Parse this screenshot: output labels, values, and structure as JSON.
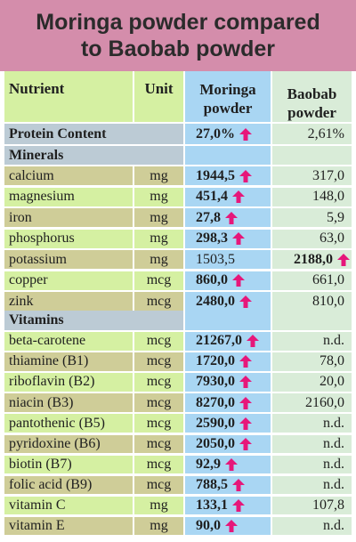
{
  "title": {
    "line1": "Moringa powder compared",
    "line2": "to Baobab powder"
  },
  "columns": {
    "nutrient": "Nutrient",
    "unit": "Unit",
    "moringa_1": "Moringa",
    "moringa_2": "powder",
    "baobab_1": "Baobab",
    "baobab_2": "powder"
  },
  "protein": {
    "label": "Protein Content",
    "moringa": "27,0%",
    "baobab": "2,61%"
  },
  "sections": {
    "minerals": "Minerals",
    "vitamins": "Vitamins"
  },
  "minerals": [
    {
      "name": "calcium",
      "unit": "mg",
      "moringa": "1944,5",
      "baobab": "317,0"
    },
    {
      "name": "magnesium",
      "unit": "mg",
      "moringa": "451,4",
      "baobab": "148,0"
    },
    {
      "name": "iron",
      "unit": "mg",
      "moringa": "27,8",
      "baobab": "5,9"
    },
    {
      "name": "phosphorus",
      "unit": "mg",
      "moringa": "298,3",
      "baobab": "63,0"
    },
    {
      "name": "potassium",
      "unit": "mg",
      "moringa": "1503,5",
      "baobab": "2188,0"
    },
    {
      "name": "copper",
      "unit": "mcg",
      "moringa": "860,0",
      "baobab": "661,0"
    },
    {
      "name": "zink",
      "unit": "mcg",
      "moringa": "2480,0",
      "baobab": "810,0"
    }
  ],
  "vitamins": [
    {
      "name": "beta-carotene",
      "unit": "mcg",
      "moringa": "21267,0",
      "baobab": "n.d."
    },
    {
      "name": "thiamine (B1)",
      "unit": "mcg",
      "moringa": "1720,0",
      "baobab": "78,0"
    },
    {
      "name": "riboflavin (B2)",
      "unit": "mcg",
      "moringa": "7930,0",
      "baobab": "20,0"
    },
    {
      "name": "niacin (B3)",
      "unit": "mcg",
      "moringa": "8270,0",
      "baobab": "2160,0"
    },
    {
      "name": "pantothenic (B5)",
      "unit": "mcg",
      "moringa": "2590,0",
      "baobab": "n.d."
    },
    {
      "name": "pyridoxine (B6)",
      "unit": "mcg",
      "moringa": "2050,0",
      "baobab": "n.d."
    },
    {
      "name": "biotin (B7)",
      "unit": "mcg",
      "moringa": "92,9",
      "baobab": "n.d."
    },
    {
      "name": "folic acid (B9)",
      "unit": "mcg",
      "moringa": "788,5",
      "baobab": "n.d."
    },
    {
      "name": "vitamin C",
      "unit": "mg",
      "moringa": "133,1",
      "baobab": "107,8"
    },
    {
      "name": "vitamin E",
      "unit": "mg",
      "moringa": "90,0",
      "baobab": "n.d."
    }
  ],
  "colors": {
    "title_bg": "#d48dab",
    "moringa_col": "#a9d6f3",
    "baobab_col": "#d9ecd8",
    "row_green": "#d5f0a2",
    "row_olive": "#cfcd98",
    "section_bg": "#bccbd5",
    "arrow": "#e6177a"
  },
  "icons": {
    "higher": "up-arrow-icon"
  }
}
